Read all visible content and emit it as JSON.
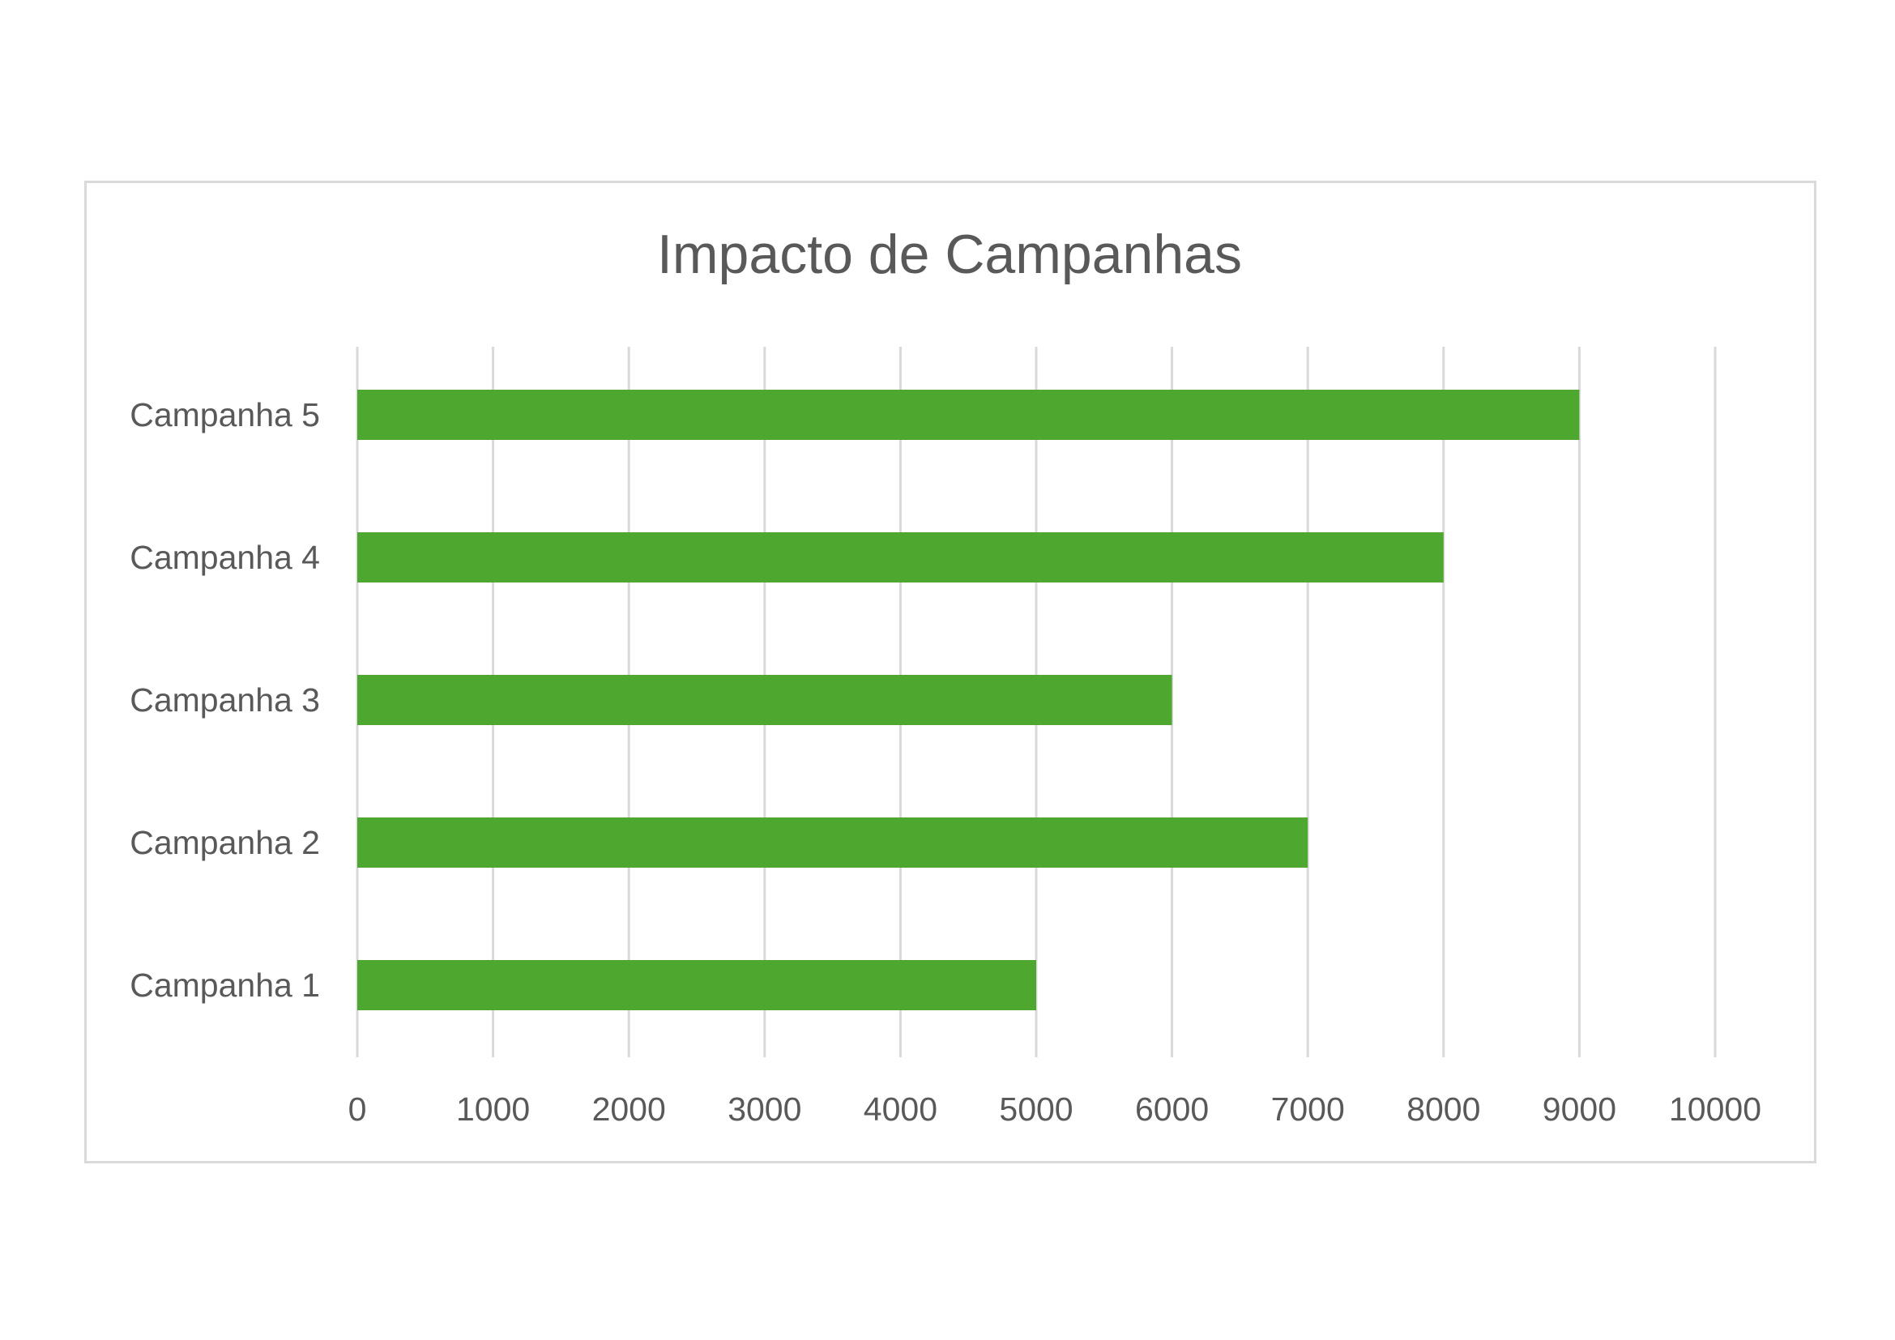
{
  "chart_data": {
    "type": "bar",
    "orientation": "horizontal",
    "title": "Impacto de Campanhas",
    "categories": [
      "Campanha 1",
      "Campanha 2",
      "Campanha 3",
      "Campanha 4",
      "Campanha 5"
    ],
    "values": [
      5000,
      7000,
      6000,
      8000,
      9000
    ],
    "xlim": [
      0,
      10000
    ],
    "xticks": [
      "0",
      "1000",
      "2000",
      "3000",
      "4000",
      "5000",
      "6000",
      "7000",
      "8000",
      "9000",
      "10000"
    ],
    "grid": "vertical",
    "legend": "none",
    "bar_color": "#4ea72e"
  }
}
